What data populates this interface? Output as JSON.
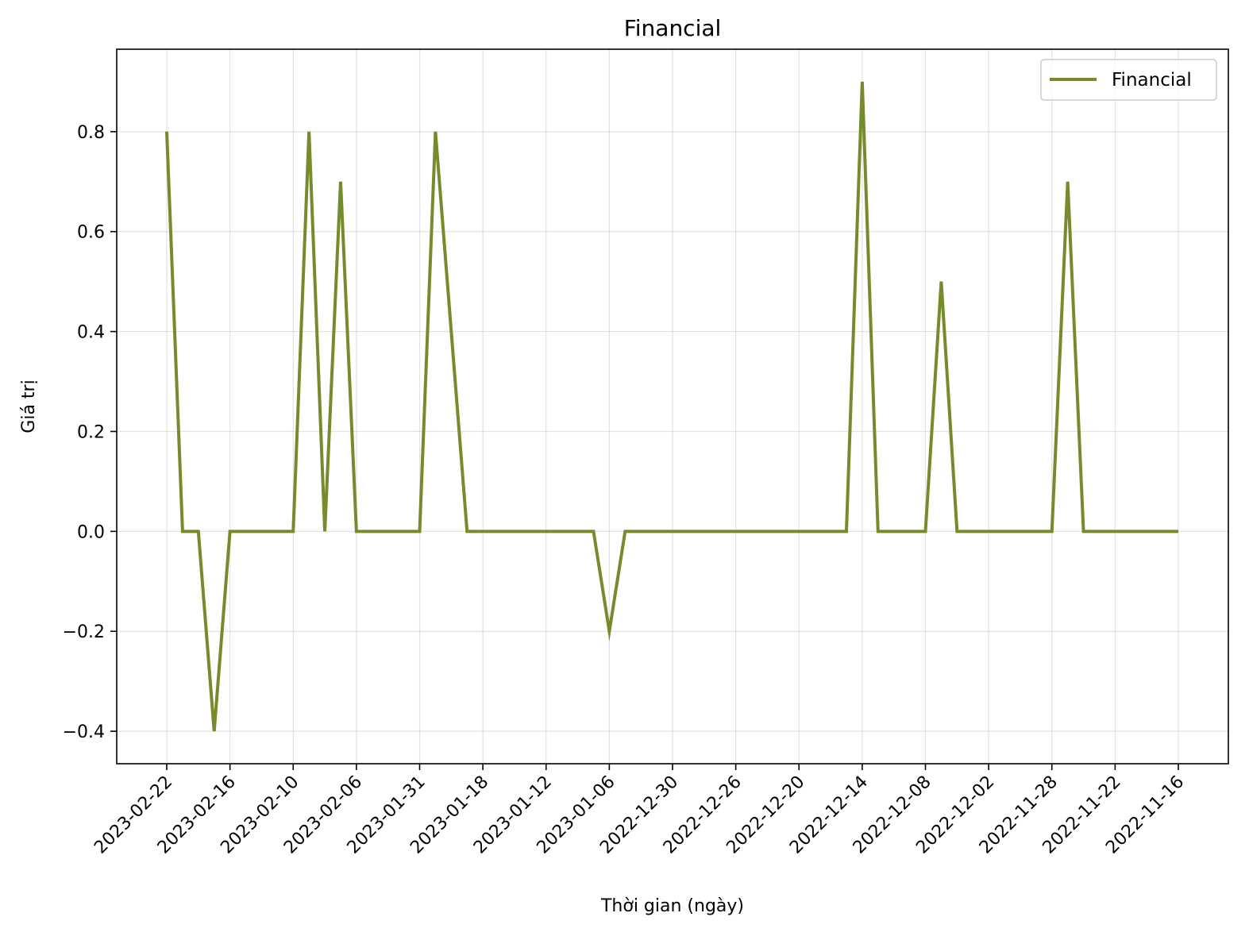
{
  "chart_data": {
    "type": "line",
    "title": "Financial",
    "xlabel": "Thời gian (ngày)",
    "ylabel": "Giá trị",
    "x_tick_labels": [
      "2023-02-22",
      "2023-02-16",
      "2023-02-10",
      "2023-02-06",
      "2023-01-31",
      "2023-01-18",
      "2023-01-12",
      "2023-01-06",
      "2022-12-30",
      "2022-12-26",
      "2022-12-20",
      "2022-12-14",
      "2022-12-08",
      "2022-12-02",
      "2022-11-28",
      "2022-11-22",
      "2022-11-16"
    ],
    "y_ticks": [
      -0.4,
      -0.2,
      0.0,
      0.2,
      0.4,
      0.6,
      0.8
    ],
    "y_tick_labels": [
      "−0.4",
      "−0.2",
      "0.0",
      "0.2",
      "0.4",
      "0.6",
      "0.8"
    ],
    "ylim": [
      -0.465,
      0.965
    ],
    "grid": true,
    "legend_position": "top-right",
    "series": [
      {
        "name": "Financial",
        "color": "#768C2C",
        "values": [
          0.8,
          0.0,
          0.0,
          -0.4,
          0.0,
          0.0,
          0.0,
          0.0,
          0.0,
          0.8,
          0.0,
          0.7,
          0.0,
          0.0,
          0.0,
          0.0,
          0.0,
          0.8,
          0.4,
          0.0,
          0.0,
          0.0,
          0.0,
          0.0,
          0.0,
          0.0,
          0.0,
          0.0,
          -0.2,
          0.0,
          0.0,
          0.0,
          0.0,
          0.0,
          0.0,
          0.0,
          0.0,
          0.0,
          0.0,
          0.0,
          0.0,
          0.0,
          0.0,
          0.0,
          0.9,
          0.0,
          0.0,
          0.0,
          0.0,
          0.5,
          0.0,
          0.0,
          0.0,
          0.0,
          0.0,
          0.0,
          0.0,
          0.7,
          0.0,
          0.0,
          0.0,
          0.0,
          0.0,
          0.0,
          0.0
        ]
      }
    ]
  }
}
